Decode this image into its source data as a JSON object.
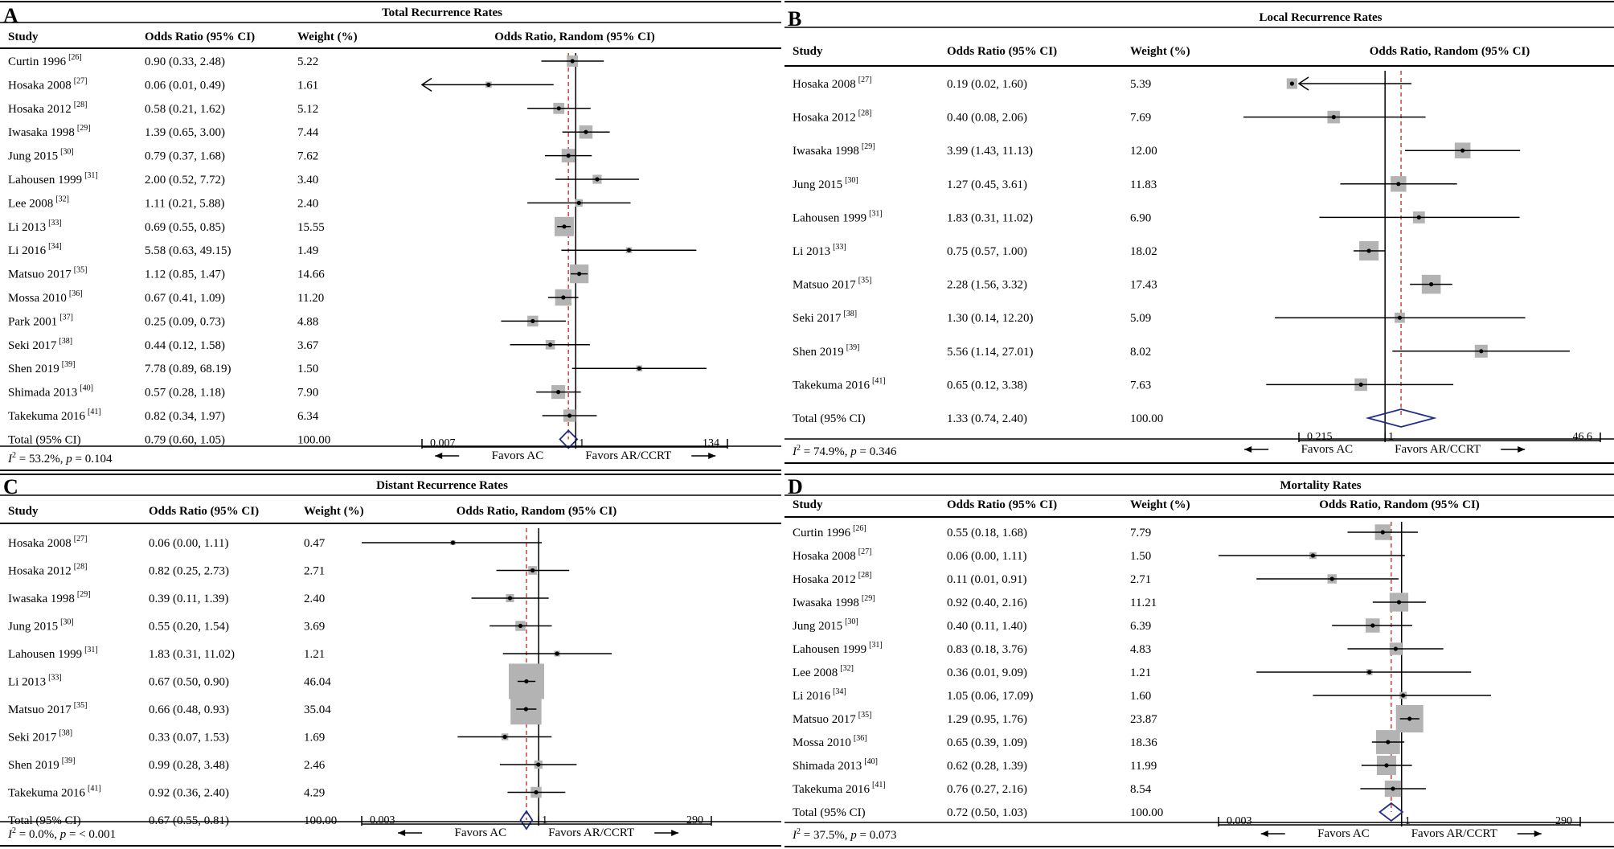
{
  "figure": {
    "colors": {
      "line": "#000000",
      "box": "#b3b3b3",
      "dash": "#c0392b",
      "diamond": "#1f2d86"
    }
  },
  "chart_data": [
    {
      "type": "forest",
      "letter": "A",
      "title": "Total Recurrence Rates",
      "headers": {
        "study": "Study",
        "or": "Odds Ratio (95% CI)",
        "weight": "Weight (%)",
        "plot": "Odds Ratio, Random (95% CI)"
      },
      "scale": {
        "min": 0.007,
        "max": 134
      },
      "overall_or": 0.79,
      "left_truncated_rows": [
        1
      ],
      "studies": [
        {
          "name": "Curtin 1996",
          "ref": "[26]",
          "or": 0.9,
          "lo": 0.33,
          "hi": 2.48,
          "or_text": "0.90 (0.33, 2.48)",
          "weight": "5.22"
        },
        {
          "name": "Hosaka 2008",
          "ref": "[27]",
          "or": 0.06,
          "lo": 0.01,
          "hi": 0.49,
          "or_text": "0.06 (0.01, 0.49)",
          "weight": "1.61"
        },
        {
          "name": "Hosaka 2012",
          "ref": "[28]",
          "or": 0.58,
          "lo": 0.21,
          "hi": 1.62,
          "or_text": "0.58 (0.21, 1.62)",
          "weight": "5.12"
        },
        {
          "name": "Iwasaka 1998",
          "ref": "[29]",
          "or": 1.39,
          "lo": 0.65,
          "hi": 3.0,
          "or_text": "1.39 (0.65, 3.00)",
          "weight": "7.44"
        },
        {
          "name": "Jung 2015",
          "ref": "[30]",
          "or": 0.79,
          "lo": 0.37,
          "hi": 1.68,
          "or_text": "0.79 (0.37, 1.68)",
          "weight": "7.62"
        },
        {
          "name": "Lahousen 1999",
          "ref": "[31]",
          "or": 2.0,
          "lo": 0.52,
          "hi": 7.72,
          "or_text": "2.00 (0.52, 7.72)",
          "weight": "3.40"
        },
        {
          "name": "Lee 2008",
          "ref": "[32]",
          "or": 1.11,
          "lo": 0.21,
          "hi": 5.88,
          "or_text": "1.11 (0.21, 5.88)",
          "weight": "2.40"
        },
        {
          "name": "Li 2013",
          "ref": "[33]",
          "or": 0.69,
          "lo": 0.55,
          "hi": 0.85,
          "or_text": "0.69 (0.55, 0.85)",
          "weight": "15.55"
        },
        {
          "name": "Li 2016",
          "ref": "[34]",
          "or": 5.58,
          "lo": 0.63,
          "hi": 49.15,
          "or_text": "5.58 (0.63, 49.15)",
          "weight": "1.49"
        },
        {
          "name": "Matsuo 2017",
          "ref": "[35]",
          "or": 1.12,
          "lo": 0.85,
          "hi": 1.47,
          "or_text": "1.12 (0.85, 1.47)",
          "weight": "14.66"
        },
        {
          "name": "Mossa 2010",
          "ref": "[36]",
          "or": 0.67,
          "lo": 0.41,
          "hi": 1.09,
          "or_text": "0.67 (0.41, 1.09)",
          "weight": "11.20"
        },
        {
          "name": "Park 2001",
          "ref": "[37]",
          "or": 0.25,
          "lo": 0.09,
          "hi": 0.73,
          "or_text": "0.25 (0.09, 0.73)",
          "weight": "4.88"
        },
        {
          "name": "Seki 2017",
          "ref": "[38]",
          "or": 0.44,
          "lo": 0.12,
          "hi": 1.58,
          "or_text": "0.44 (0.12, 1.58)",
          "weight": "3.67"
        },
        {
          "name": "Shen 2019",
          "ref": "[39]",
          "or": 7.78,
          "lo": 0.89,
          "hi": 68.19,
          "or_text": "7.78 (0.89, 68.19)",
          "weight": "1.50"
        },
        {
          "name": "Shimada 2013",
          "ref": "[40]",
          "or": 0.57,
          "lo": 0.28,
          "hi": 1.18,
          "or_text": "0.57 (0.28, 1.18)",
          "weight": "7.90"
        },
        {
          "name": "Takekuma 2016",
          "ref": "[41]",
          "or": 0.82,
          "lo": 0.34,
          "hi": 1.97,
          "or_text": "0.82 (0.34, 1.97)",
          "weight": "6.34"
        }
      ],
      "total": {
        "name": "Total (95% CI)",
        "or": 0.79,
        "lo": 0.6,
        "hi": 1.05,
        "or_text": "0.79 (0.60, 1.05)",
        "weight": "100.00"
      },
      "heterogeneity": {
        "i2": "53.2%",
        "p": "0.104"
      },
      "axis": {
        "min_label": "0.007",
        "mid_label": "1",
        "max_label": "134",
        "left_label": "Favors AC",
        "right_label": "Favors AR/CCRT"
      }
    },
    {
      "type": "forest",
      "letter": "B",
      "title": "Local Recurrence  Rates",
      "headers": {
        "study": "Study",
        "or": "Odds Ratio (95% CI)",
        "weight": "Weight (%)",
        "plot": "Odds Ratio, Random (95% CI)"
      },
      "scale": {
        "min": 0.215,
        "max": 46.6
      },
      "overall_or": 1.33,
      "left_truncated_rows": [
        0
      ],
      "studies": [
        {
          "name": "Hosaka 2008",
          "ref": "[27]",
          "or": 0.19,
          "lo": 0.02,
          "hi": 1.6,
          "or_text": "0.19 (0.02, 1.60)",
          "weight": "5.39"
        },
        {
          "name": "Hosaka 2012",
          "ref": "[28]",
          "or": 0.4,
          "lo": 0.08,
          "hi": 2.06,
          "or_text": "0.40 (0.08, 2.06)",
          "weight": "7.69"
        },
        {
          "name": "Iwasaka 1998",
          "ref": "[29]",
          "or": 3.99,
          "lo": 1.43,
          "hi": 11.13,
          "or_text": "3.99 (1.43, 11.13)",
          "weight": "12.00"
        },
        {
          "name": "Jung 2015",
          "ref": "[30]",
          "or": 1.27,
          "lo": 0.45,
          "hi": 3.61,
          "or_text": "1.27 (0.45, 3.61)",
          "weight": "11.83"
        },
        {
          "name": "Lahousen 1999",
          "ref": "[31]",
          "or": 1.83,
          "lo": 0.31,
          "hi": 11.02,
          "or_text": "1.83 (0.31, 11.02)",
          "weight": "6.90"
        },
        {
          "name": "Li 2013",
          "ref": "[33]",
          "or": 0.75,
          "lo": 0.57,
          "hi": 1.0,
          "or_text": "0.75 (0.57, 1.00)",
          "weight": "18.02"
        },
        {
          "name": "Matsuo 2017",
          "ref": "[35]",
          "or": 2.28,
          "lo": 1.56,
          "hi": 3.32,
          "or_text": "2.28 (1.56, 3.32)",
          "weight": "17.43"
        },
        {
          "name": "Seki 2017",
          "ref": "[38]",
          "or": 1.3,
          "lo": 0.14,
          "hi": 12.2,
          "or_text": "1.30 (0.14, 12.20)",
          "weight": "5.09"
        },
        {
          "name": "Shen 2019",
          "ref": "[39]",
          "or": 5.56,
          "lo": 1.14,
          "hi": 27.01,
          "or_text": "5.56 (1.14, 27.01)",
          "weight": "8.02"
        },
        {
          "name": "Takekuma 2016",
          "ref": "[41]",
          "or": 0.65,
          "lo": 0.12,
          "hi": 3.38,
          "or_text": "0.65 (0.12, 3.38)",
          "weight": "7.63"
        }
      ],
      "total": {
        "name": "Total (95% CI)",
        "or": 1.33,
        "lo": 0.74,
        "hi": 2.4,
        "or_text": "1.33 (0.74, 2.40)",
        "weight": "100.00"
      },
      "heterogeneity": {
        "i2": "74.9%",
        "p": "0.346"
      },
      "axis": {
        "min_label": "0.215",
        "mid_label": "1",
        "max_label": "46.6",
        "left_label": "Favors AC",
        "right_label": "Favors AR/CCRT"
      }
    },
    {
      "type": "forest",
      "letter": "C",
      "title": "Distant Recurrence Rates",
      "headers": {
        "study": "Study",
        "or": "Odds Ratio (95% CI)",
        "weight": "Weight (%)",
        "plot": "Odds Ratio, Random (95% CI)"
      },
      "scale": {
        "min": 0.003,
        "max": 290
      },
      "overall_or": 0.67,
      "left_truncated_rows": [],
      "studies": [
        {
          "name": "Hosaka 2008",
          "ref": "[27]",
          "or": 0.06,
          "lo": 0.003,
          "hi": 1.11,
          "or_text": "0.06 (0.00, 1.11)",
          "weight": "0.47"
        },
        {
          "name": "Hosaka 2012",
          "ref": "[28]",
          "or": 0.82,
          "lo": 0.25,
          "hi": 2.73,
          "or_text": "0.82 (0.25, 2.73)",
          "weight": "2.71"
        },
        {
          "name": "Iwasaka 1998",
          "ref": "[29]",
          "or": 0.39,
          "lo": 0.11,
          "hi": 1.39,
          "or_text": "0.39 (0.11, 1.39)",
          "weight": "2.40"
        },
        {
          "name": "Jung 2015",
          "ref": "[30]",
          "or": 0.55,
          "lo": 0.2,
          "hi": 1.54,
          "or_text": "0.55 (0.20, 1.54)",
          "weight": "3.69"
        },
        {
          "name": "Lahousen 1999",
          "ref": "[31]",
          "or": 1.83,
          "lo": 0.31,
          "hi": 11.02,
          "or_text": "1.83 (0.31, 11.02)",
          "weight": "1.21"
        },
        {
          "name": "Li 2013",
          "ref": "[33]",
          "or": 0.67,
          "lo": 0.5,
          "hi": 0.9,
          "or_text": "0.67 (0.50, 0.90)",
          "weight": "46.04"
        },
        {
          "name": "Matsuo 2017",
          "ref": "[35]",
          "or": 0.66,
          "lo": 0.48,
          "hi": 0.93,
          "or_text": "0.66 (0.48, 0.93)",
          "weight": "35.04"
        },
        {
          "name": "Seki 2017",
          "ref": "[38]",
          "or": 0.33,
          "lo": 0.07,
          "hi": 1.53,
          "or_text": "0.33 (0.07, 1.53)",
          "weight": "1.69"
        },
        {
          "name": "Shen 2019",
          "ref": "[39]",
          "or": 0.99,
          "lo": 0.28,
          "hi": 3.48,
          "or_text": "0.99 (0.28, 3.48)",
          "weight": "2.46"
        },
        {
          "name": "Takekuma 2016",
          "ref": "[41]",
          "or": 0.92,
          "lo": 0.36,
          "hi": 2.4,
          "or_text": "0.92 (0.36, 2.40)",
          "weight": "4.29"
        }
      ],
      "total": {
        "name": "Total (95% CI)",
        "or": 0.67,
        "lo": 0.55,
        "hi": 0.81,
        "or_text": "0.67 (0.55, 0.81)",
        "weight": "100.00"
      },
      "heterogeneity": {
        "i2": "0.0%",
        "p": "< 0.001"
      },
      "axis": {
        "min_label": "0.003",
        "mid_label": "1",
        "max_label": "290",
        "left_label": "Favors AC",
        "right_label": "Favors AR/CCRT"
      }
    },
    {
      "type": "forest",
      "letter": "D",
      "title": "Mortality Rates",
      "headers": {
        "study": "Study",
        "or": "Odds Ratio (95% CI)",
        "weight": "Weight (%)",
        "plot": "Odds Ratio, Random (95% CI)"
      },
      "scale": {
        "min": 0.003,
        "max": 290
      },
      "overall_or": 0.72,
      "left_truncated_rows": [],
      "studies": [
        {
          "name": "Curtin 1996",
          "ref": "[26]",
          "or": 0.55,
          "lo": 0.18,
          "hi": 1.68,
          "or_text": "0.55 (0.18, 1.68)",
          "weight": "7.79"
        },
        {
          "name": "Hosaka 2008",
          "ref": "[27]",
          "or": 0.06,
          "lo": 0.003,
          "hi": 1.11,
          "or_text": "0.06 (0.00, 1.11)",
          "weight": "1.50"
        },
        {
          "name": "Hosaka 2012",
          "ref": "[28]",
          "or": 0.11,
          "lo": 0.01,
          "hi": 0.91,
          "or_text": "0.11 (0.01, 0.91)",
          "weight": "2.71"
        },
        {
          "name": "Iwasaka 1998",
          "ref": "[29]",
          "or": 0.92,
          "lo": 0.4,
          "hi": 2.16,
          "or_text": "0.92 (0.40, 2.16)",
          "weight": "11.21"
        },
        {
          "name": "Jung 2015",
          "ref": "[30]",
          "or": 0.4,
          "lo": 0.11,
          "hi": 1.4,
          "or_text": "0.40 (0.11, 1.40)",
          "weight": "6.39"
        },
        {
          "name": "Lahousen 1999",
          "ref": "[31]",
          "or": 0.83,
          "lo": 0.18,
          "hi": 3.76,
          "or_text": "0.83 (0.18, 3.76)",
          "weight": "4.83"
        },
        {
          "name": "Lee 2008",
          "ref": "[32]",
          "or": 0.36,
          "lo": 0.01,
          "hi": 9.09,
          "or_text": "0.36 (0.01, 9.09)",
          "weight": "1.21"
        },
        {
          "name": "Li 2016",
          "ref": "[34]",
          "or": 1.05,
          "lo": 0.06,
          "hi": 17.09,
          "or_text": "1.05 (0.06, 17.09)",
          "weight": "1.60"
        },
        {
          "name": "Matsuo 2017",
          "ref": "[35]",
          "or": 1.29,
          "lo": 0.95,
          "hi": 1.76,
          "or_text": "1.29 (0.95, 1.76)",
          "weight": "23.87"
        },
        {
          "name": "Mossa 2010",
          "ref": "[36]",
          "or": 0.65,
          "lo": 0.39,
          "hi": 1.09,
          "or_text": "0.65 (0.39, 1.09)",
          "weight": "18.36"
        },
        {
          "name": "Shimada 2013",
          "ref": "[40]",
          "or": 0.62,
          "lo": 0.28,
          "hi": 1.39,
          "or_text": "0.62 (0.28, 1.39)",
          "weight": "11.99"
        },
        {
          "name": "Takekuma 2016",
          "ref": "[41]",
          "or": 0.76,
          "lo": 0.27,
          "hi": 2.16,
          "or_text": "0.76 (0.27, 2.16)",
          "weight": "8.54"
        }
      ],
      "total": {
        "name": "Total (95% CI)",
        "or": 0.72,
        "lo": 0.5,
        "hi": 1.03,
        "or_text": "0.72 (0.50, 1.03)",
        "weight": "100.00"
      },
      "heterogeneity": {
        "i2": "37.5%",
        "p": "0.073"
      },
      "axis": {
        "min_label": "0.003",
        "mid_label": "1",
        "max_label": "290",
        "left_label": "Favors AC",
        "right_label": "Favors AR/CCRT"
      }
    }
  ]
}
